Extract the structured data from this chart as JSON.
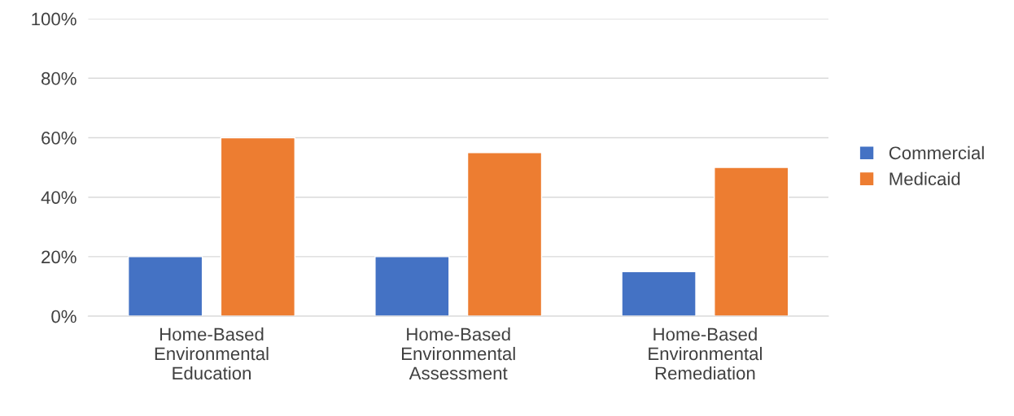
{
  "chart_data": {
    "type": "bar",
    "categories": [
      "Home-Based\nEnvironmental\nEducation",
      "Home-Based\nEnvironmental\nAssessment",
      "Home-Based\nEnvironmental\nRemediation"
    ],
    "series": [
      {
        "name": "Commercial",
        "color": "#4472c4",
        "values": [
          20,
          20,
          15
        ]
      },
      {
        "name": "Medicaid",
        "color": "#ed7d31",
        "values": [
          60,
          55,
          50
        ]
      }
    ],
    "ylim": [
      0,
      100
    ],
    "yticks": [
      {
        "value": 0,
        "label": "0%"
      },
      {
        "value": 20,
        "label": "20%"
      },
      {
        "value": 40,
        "label": "40%"
      },
      {
        "value": 60,
        "label": "60%"
      },
      {
        "value": 80,
        "label": "80%"
      },
      {
        "value": 100,
        "label": "100%"
      }
    ],
    "grid": "y",
    "legend": "right"
  }
}
